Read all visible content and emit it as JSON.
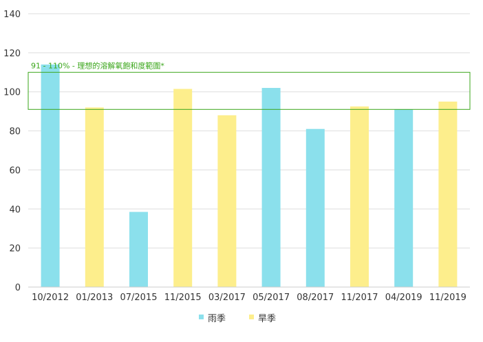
{
  "chart_data": {
    "type": "bar",
    "categories": [
      "10/2012",
      "01/2013",
      "07/2015",
      "11/2015",
      "03/2017",
      "05/2017",
      "08/2017",
      "11/2017",
      "04/2019",
      "11/2019"
    ],
    "series": [
      {
        "name": "雨季",
        "color": "#8be0ec",
        "values": [
          114,
          null,
          38.5,
          null,
          null,
          102,
          81,
          null,
          91,
          null
        ]
      },
      {
        "name": "旱季",
        "color": "#fdee8c",
        "values": [
          null,
          92,
          null,
          101.5,
          88,
          null,
          null,
          92.5,
          null,
          95
        ]
      }
    ],
    "ylim": [
      0,
      140
    ],
    "yticks": [
      0,
      20,
      40,
      60,
      80,
      100,
      120,
      140
    ],
    "grid": true,
    "legend_position": "bottom",
    "annotation": {
      "label": "91 - 110% - 理想的溶解氧飽和度範圍*",
      "range": [
        91,
        110
      ],
      "color": "#3aa61a"
    }
  }
}
